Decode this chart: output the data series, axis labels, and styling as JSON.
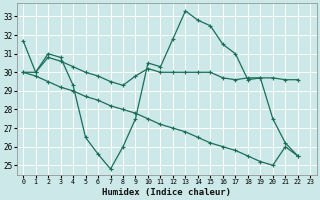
{
  "xlabel": "Humidex (Indice chaleur)",
  "background_color": "#cce8e8",
  "grid_color": "#ffffff",
  "line_color": "#1a6e5a",
  "xlim": [
    -0.5,
    23.5
  ],
  "ylim": [
    24.5,
    33.7
  ],
  "yticks": [
    25,
    26,
    27,
    28,
    29,
    30,
    31,
    32,
    33
  ],
  "xticks": [
    0,
    1,
    2,
    3,
    4,
    5,
    6,
    7,
    8,
    9,
    10,
    11,
    12,
    13,
    14,
    15,
    16,
    17,
    18,
    19,
    20,
    21,
    22,
    23
  ],
  "series": [
    [
      31.7,
      30.0,
      31.0,
      30.8,
      29.3,
      26.5,
      25.6,
      24.8,
      26.0,
      27.5,
      30.5,
      30.3,
      31.8,
      33.3,
      32.8,
      32.5,
      31.5,
      31.0,
      29.6,
      29.7,
      27.5,
      26.2,
      25.5
    ],
    [
      30.0,
      30.0,
      30.8,
      30.6,
      30.3,
      30.0,
      29.8,
      29.5,
      29.3,
      29.8,
      30.2,
      30.0,
      30.0,
      30.0,
      30.0,
      30.0,
      29.7,
      29.6,
      29.7,
      29.7,
      29.7,
      29.6,
      29.6
    ],
    [
      30.0,
      29.8,
      29.5,
      29.2,
      29.0,
      28.7,
      28.5,
      28.2,
      28.0,
      27.8,
      27.5,
      27.2,
      27.0,
      26.8,
      26.5,
      26.2,
      26.0,
      25.8,
      25.5,
      25.2,
      25.0,
      26.0,
      25.5
    ]
  ],
  "series_x": [
    [
      0,
      1,
      2,
      3,
      4,
      5,
      6,
      7,
      8,
      9,
      10,
      11,
      12,
      13,
      14,
      15,
      16,
      17,
      18,
      19,
      20,
      21,
      22
    ],
    [
      0,
      1,
      2,
      3,
      4,
      5,
      6,
      7,
      8,
      9,
      10,
      11,
      12,
      13,
      14,
      15,
      16,
      17,
      18,
      19,
      20,
      21,
      22
    ],
    [
      0,
      1,
      2,
      3,
      4,
      5,
      6,
      7,
      8,
      9,
      10,
      11,
      12,
      13,
      14,
      15,
      16,
      17,
      18,
      19,
      20,
      21,
      22
    ]
  ]
}
